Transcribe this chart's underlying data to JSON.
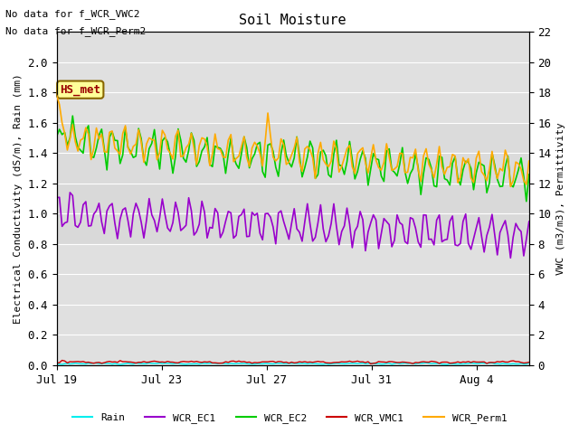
{
  "title": "Soil Moisture",
  "ylabel_left": "Electrical Conductivity (dS/m), Rain (mm)",
  "ylabel_right": "VWC (m3/m3), Permittivity",
  "note1": "No data for f_WCR_VWC2",
  "note2": "No data for f_WCR_Perm2",
  "hs_met_label": "HS_met",
  "hs_met_box_color": "#ffff99",
  "hs_met_text_color": "#990000",
  "hs_met_border_color": "#886600",
  "ylim_left": [
    0.0,
    2.2
  ],
  "ylim_right": [
    0,
    22
  ],
  "yticks_left": [
    0.0,
    0.2,
    0.4,
    0.6,
    0.8,
    1.0,
    1.2,
    1.4,
    1.6,
    1.8,
    2.0
  ],
  "yticks_right": [
    0,
    2,
    4,
    6,
    8,
    10,
    12,
    14,
    16,
    18,
    20,
    22
  ],
  "xtick_labels": [
    "Jul 19",
    "Jul 23",
    "Jul 27",
    "Jul 31",
    "Aug 4"
  ],
  "colors": {
    "Rain": "#00eeee",
    "WCR_EC1": "#9900cc",
    "WCR_EC2": "#00cc00",
    "WCR_VMC1": "#cc0000",
    "WCR_Perm1": "#ffaa00"
  },
  "background_color": "#ffffff",
  "plot_bg_color": "#e0e0e0",
  "shading_color": "#d0d0d0",
  "font_family": "monospace",
  "title_fontsize": 11,
  "label_fontsize": 8,
  "tick_fontsize": 9
}
